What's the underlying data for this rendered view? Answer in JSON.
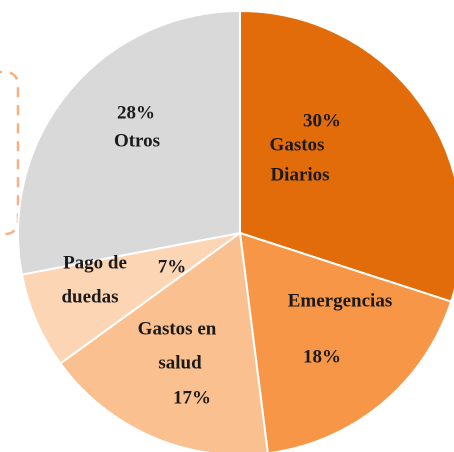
{
  "chart_data": {
    "type": "pie",
    "categories": [
      [
        "Gastos",
        "Diarios"
      ],
      [
        "Emergencias"
      ],
      [
        "Gastos en",
        "salud"
      ],
      [
        "Pago de",
        "duedas"
      ],
      [
        "Otros"
      ]
    ],
    "values": [
      30,
      18,
      17,
      7,
      28
    ],
    "value_labels": [
      "30%",
      "18%",
      "17%",
      "7%",
      "28%"
    ],
    "colors": [
      "#E36C0A",
      "#F79646",
      "#FAC090",
      "#FCD5B5",
      "#D9D9D9"
    ]
  }
}
